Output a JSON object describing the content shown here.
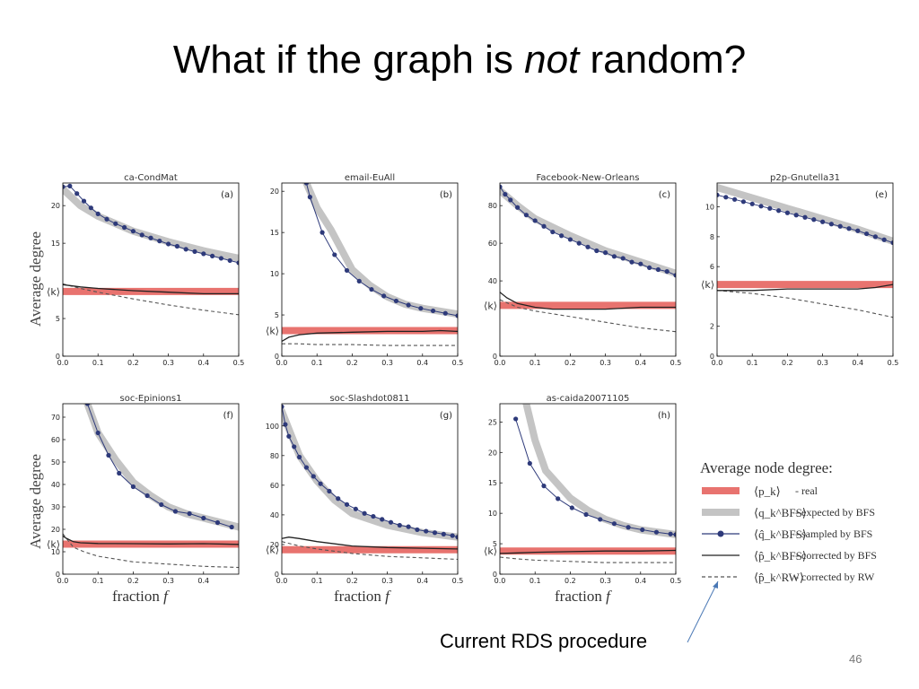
{
  "slide": {
    "title_pre": "What if the graph is ",
    "title_emph": "not",
    "title_post": " random?",
    "annotation": "Current RDS procedure",
    "page_number": "46"
  },
  "axis_text": {
    "ylabel_top": "Average degree",
    "ylabel_bottom": "Average degree",
    "xlabel_prefix": "fraction",
    "xlabel_var": "f",
    "k_label": "⟨k⟩"
  },
  "legend": {
    "title": "Average node degree:",
    "items": [
      {
        "symbol": "⟨p_k⟩",
        "text": "- real",
        "style": "real"
      },
      {
        "symbol": "⟨q_k^BFS⟩",
        "text": "- expected by BFS",
        "style": "expected"
      },
      {
        "symbol": "⟨q̂_k^BFS⟩",
        "text": "- sampled by BFS",
        "style": "sampled"
      },
      {
        "symbol": "⟨p̂_k^BFS⟩",
        "text": "- corrected by BFS",
        "style": "corrected_bfs"
      },
      {
        "symbol": "⟨p̂_k^RW⟩",
        "text": "- corrected by RW",
        "style": "corrected_rw"
      }
    ]
  },
  "colors": {
    "real": "#e8736f",
    "expected": "#c4c4c4",
    "sampled": "#2e3a7a",
    "corrected_bfs": "#222222",
    "corrected_rw": "#555555",
    "annotation_arrow": "#4a78b5"
  },
  "chart_data": [
    {
      "type": "line",
      "title": "ca-CondMat",
      "tag": "(a)",
      "xlim": [
        0,
        0.5
      ],
      "ylim": [
        0,
        23
      ],
      "xticks": [
        0.0,
        0.1,
        0.2,
        0.3,
        0.4,
        0.5
      ],
      "xtick_labels": [
        "0.0",
        "0.1",
        "0.2",
        "0.3",
        "0.4",
        "0.5"
      ],
      "yticks": [
        0,
        5,
        15,
        20
      ],
      "ytick_labels": [
        "0",
        "5",
        "15",
        "20"
      ],
      "real_k": 8.6,
      "expected": {
        "x": [
          0,
          0.05,
          0.1,
          0.2,
          0.3,
          0.4,
          0.5
        ],
        "y": [
          22.2,
          20.0,
          18.6,
          16.6,
          15.2,
          14.0,
          13.0
        ]
      },
      "sampled": {
        "x": [
          0,
          0.02,
          0.04,
          0.06,
          0.08,
          0.1,
          0.125,
          0.15,
          0.175,
          0.2,
          0.225,
          0.25,
          0.275,
          0.3,
          0.325,
          0.35,
          0.375,
          0.4,
          0.425,
          0.45,
          0.475,
          0.5
        ],
        "y": [
          22.5,
          22.6,
          21.6,
          20.6,
          19.7,
          18.9,
          18.2,
          17.6,
          17.1,
          16.6,
          16.1,
          15.7,
          15.3,
          14.9,
          14.6,
          14.2,
          13.9,
          13.6,
          13.3,
          13.0,
          12.7,
          12.4
        ]
      },
      "corrected_bfs": {
        "x": [
          0,
          0.05,
          0.1,
          0.2,
          0.3,
          0.4,
          0.5
        ],
        "y": [
          9.5,
          9.2,
          9.0,
          8.7,
          8.5,
          8.3,
          8.3
        ]
      },
      "corrected_rw": {
        "x": [
          0,
          0.05,
          0.1,
          0.2,
          0.3,
          0.4,
          0.5
        ],
        "y": [
          9.6,
          9.0,
          8.5,
          7.6,
          6.8,
          6.1,
          5.5
        ]
      }
    },
    {
      "type": "line",
      "title": "email-EuAll",
      "tag": "(b)",
      "xlim": [
        0,
        0.5
      ],
      "ylim": [
        0,
        21
      ],
      "xticks": [
        0.0,
        0.1,
        0.2,
        0.3,
        0.4,
        0.5
      ],
      "xtick_labels": [
        "0.0",
        "0.1",
        "0.2",
        "0.3",
        "0.4",
        "0.5"
      ],
      "yticks": [
        0,
        5,
        10,
        15,
        20
      ],
      "ytick_labels": [
        "0",
        "5",
        "10",
        "15",
        "20"
      ],
      "real_k": 3.1,
      "expected": {
        "x": [
          0.07,
          0.1,
          0.14,
          0.2,
          0.25,
          0.3,
          0.35,
          0.4,
          0.5
        ],
        "y": [
          21.0,
          18.0,
          15.3,
          10.5,
          8.6,
          7.2,
          6.3,
          5.8,
          5.1
        ]
      },
      "sampled": {
        "x": [
          0.07,
          0.08,
          0.115,
          0.15,
          0.185,
          0.22,
          0.255,
          0.29,
          0.325,
          0.36,
          0.395,
          0.43,
          0.465,
          0.5
        ],
        "y": [
          21.0,
          19.3,
          15.0,
          12.3,
          10.4,
          9.1,
          8.1,
          7.3,
          6.7,
          6.2,
          5.8,
          5.5,
          5.2,
          4.9
        ]
      },
      "corrected_bfs": {
        "x": [
          0,
          0.02,
          0.05,
          0.1,
          0.2,
          0.3,
          0.4,
          0.45,
          0.5
        ],
        "y": [
          1.8,
          2.3,
          2.6,
          2.8,
          2.9,
          3.0,
          3.0,
          3.1,
          3.0
        ]
      },
      "corrected_rw": {
        "x": [
          0,
          0.05,
          0.1,
          0.2,
          0.3,
          0.4,
          0.5
        ],
        "y": [
          1.5,
          1.5,
          1.4,
          1.4,
          1.3,
          1.3,
          1.3
        ]
      }
    },
    {
      "type": "line",
      "title": "Facebook-New-Orleans",
      "tag": "(c)",
      "xlim": [
        0,
        0.5
      ],
      "ylim": [
        0,
        92
      ],
      "xticks": [
        0.0,
        0.1,
        0.2,
        0.3,
        0.4,
        0.5
      ],
      "xtick_labels": [
        "0.0",
        "0.1",
        "0.2",
        "0.3",
        "0.4",
        "0.5"
      ],
      "yticks": [
        0,
        40,
        60,
        80
      ],
      "ytick_labels": [
        "0",
        "40",
        "60",
        "80"
      ],
      "real_k": 27,
      "expected": {
        "x": [
          0,
          0.05,
          0.1,
          0.2,
          0.3,
          0.4,
          0.5
        ],
        "y": [
          88,
          80,
          73,
          64,
          56,
          50,
          44
        ]
      },
      "sampled": {
        "x": [
          0,
          0.015,
          0.03,
          0.05,
          0.075,
          0.1,
          0.125,
          0.15,
          0.175,
          0.2,
          0.225,
          0.25,
          0.275,
          0.3,
          0.325,
          0.35,
          0.375,
          0.4,
          0.425,
          0.45,
          0.475,
          0.5
        ],
        "y": [
          90,
          86,
          83,
          79,
          75,
          72,
          69,
          66,
          64,
          62,
          60,
          58,
          56,
          55,
          53,
          52,
          50,
          49,
          47,
          46,
          45,
          43
        ]
      },
      "corrected_bfs": {
        "x": [
          0,
          0.02,
          0.05,
          0.1,
          0.15,
          0.2,
          0.3,
          0.4,
          0.5
        ],
        "y": [
          34,
          31,
          28,
          26,
          25,
          25,
          25,
          26,
          26
        ]
      },
      "corrected_rw": {
        "x": [
          0,
          0.05,
          0.1,
          0.2,
          0.3,
          0.4,
          0.5
        ],
        "y": [
          30,
          26,
          24,
          21,
          18,
          15,
          13
        ]
      }
    },
    {
      "type": "line",
      "title": "p2p-Gnutella31",
      "tag": "(e)",
      "xlim": [
        0,
        0.5
      ],
      "ylim": [
        0,
        11.6
      ],
      "xticks": [
        0.0,
        0.1,
        0.2,
        0.3,
        0.4,
        0.5
      ],
      "xtick_labels": [
        "0.0",
        "0.1",
        "0.2",
        "0.3",
        "0.4",
        "0.5"
      ],
      "yticks": [
        0,
        2,
        6,
        8,
        10
      ],
      "ytick_labels": [
        "0",
        "2",
        "6",
        "8",
        "10"
      ],
      "real_k": 4.8,
      "expected": {
        "x": [
          0,
          0.1,
          0.2,
          0.3,
          0.4,
          0.5
        ],
        "y": [
          11.3,
          10.6,
          9.9,
          9.2,
          8.5,
          7.7
        ]
      },
      "sampled": {
        "x": [
          0,
          0.025,
          0.05,
          0.075,
          0.1,
          0.125,
          0.15,
          0.175,
          0.2,
          0.225,
          0.25,
          0.275,
          0.3,
          0.325,
          0.35,
          0.375,
          0.4,
          0.425,
          0.45,
          0.475,
          0.5
        ],
        "y": [
          10.8,
          10.65,
          10.5,
          10.35,
          10.2,
          10.05,
          9.9,
          9.75,
          9.6,
          9.45,
          9.3,
          9.15,
          9.0,
          8.85,
          8.7,
          8.55,
          8.4,
          8.2,
          8.0,
          7.8,
          7.6
        ]
      },
      "corrected_bfs": {
        "x": [
          0,
          0.1,
          0.2,
          0.3,
          0.4,
          0.45,
          0.5
        ],
        "y": [
          4.4,
          4.4,
          4.5,
          4.5,
          4.5,
          4.6,
          4.8
        ]
      },
      "corrected_rw": {
        "x": [
          0,
          0.1,
          0.2,
          0.3,
          0.4,
          0.5
        ],
        "y": [
          4.4,
          4.2,
          3.9,
          3.5,
          3.1,
          2.6
        ]
      }
    },
    {
      "type": "line",
      "title": "soc-Epinions1",
      "tag": "(f)",
      "xlim": [
        0,
        0.5
      ],
      "ylim": [
        0,
        76
      ],
      "xticks": [
        0.0,
        0.1,
        0.2,
        0.3,
        0.4
      ],
      "xtick_labels": [
        "0.0",
        "0.1",
        "0.2",
        "0.3",
        "0.4"
      ],
      "yticks": [
        0,
        10,
        20,
        30,
        40,
        50,
        60,
        70
      ],
      "ytick_labels": [
        "0",
        "10",
        "20",
        "30",
        "40",
        "50",
        "60",
        "70"
      ],
      "real_k": 13.4,
      "expected": {
        "x": [
          0.07,
          0.1,
          0.15,
          0.2,
          0.25,
          0.3,
          0.35,
          0.4,
          0.45,
          0.5
        ],
        "y": [
          76,
          63,
          51,
          41,
          35,
          30,
          27,
          25,
          23,
          21
        ]
      },
      "sampled": {
        "x": [
          0.07,
          0.1,
          0.13,
          0.16,
          0.2,
          0.24,
          0.28,
          0.32,
          0.36,
          0.4,
          0.44,
          0.48
        ],
        "y": [
          76,
          63,
          53,
          45,
          39,
          35,
          31,
          28,
          27,
          25,
          23,
          21
        ]
      },
      "corrected_bfs": {
        "x": [
          0,
          0.01,
          0.03,
          0.05,
          0.1,
          0.2,
          0.3,
          0.4,
          0.5
        ],
        "y": [
          17,
          16,
          14.5,
          14,
          13.7,
          13.6,
          13.5,
          13.6,
          13.3
        ]
      },
      "corrected_rw": {
        "x": [
          0,
          0.03,
          0.06,
          0.1,
          0.2,
          0.3,
          0.4,
          0.5
        ],
        "y": [
          18,
          12,
          10,
          8,
          5.5,
          4.5,
          3.5,
          3
        ]
      }
    },
    {
      "type": "line",
      "title": "soc-Slashdot0811",
      "tag": "(g)",
      "xlim": [
        0,
        0.5
      ],
      "ylim": [
        0,
        115
      ],
      "xticks": [
        0.0,
        0.1,
        0.2,
        0.3,
        0.4,
        0.5
      ],
      "xtick_labels": [
        "0.0",
        "0.1",
        "0.2",
        "0.3",
        "0.4",
        "0.5"
      ],
      "yticks": [
        0,
        20,
        40,
        60,
        80,
        100
      ],
      "ytick_labels": [
        "0",
        "20",
        "40",
        "60",
        "80",
        "100"
      ],
      "real_k": 16.5,
      "expected": {
        "x": [
          0,
          0.05,
          0.1,
          0.15,
          0.2,
          0.3,
          0.4,
          0.5
        ],
        "y": [
          110,
          80,
          63,
          50,
          41,
          33,
          28,
          25
        ]
      },
      "sampled": {
        "x": [
          0,
          0.01,
          0.02,
          0.035,
          0.05,
          0.07,
          0.09,
          0.11,
          0.135,
          0.16,
          0.185,
          0.21,
          0.235,
          0.26,
          0.285,
          0.31,
          0.335,
          0.36,
          0.385,
          0.41,
          0.435,
          0.46,
          0.485,
          0.5
        ],
        "y": [
          113,
          101,
          93,
          86,
          79,
          72,
          66,
          61,
          56,
          51,
          47,
          44,
          41,
          39,
          37,
          35,
          33,
          32,
          30,
          29,
          28,
          27,
          26,
          25
        ]
      },
      "corrected_bfs": {
        "x": [
          0,
          0.02,
          0.05,
          0.1,
          0.2,
          0.3,
          0.4,
          0.5
        ],
        "y": [
          24,
          25,
          24,
          22,
          19,
          18,
          17.5,
          17
        ]
      },
      "corrected_rw": {
        "x": [
          0,
          0.05,
          0.1,
          0.2,
          0.3,
          0.4,
          0.5
        ],
        "y": [
          22,
          19,
          17,
          14,
          12,
          11,
          10
        ]
      }
    },
    {
      "type": "line",
      "title": "as-caida20071105",
      "tag": "(h)",
      "xlim": [
        0,
        0.5
      ],
      "ylim": [
        0,
        28
      ],
      "xticks": [
        0.0,
        0.1,
        0.2,
        0.3,
        0.4,
        0.5
      ],
      "xtick_labels": [
        "0.0",
        "0.1",
        "0.2",
        "0.3",
        "0.4",
        "0.5"
      ],
      "yticks": [
        0,
        5,
        10,
        15,
        20,
        25
      ],
      "ytick_labels": [
        "0",
        "5",
        "10",
        "15",
        "20",
        "25"
      ],
      "real_k": 3.8,
      "expected": {
        "x": [
          0.075,
          0.1,
          0.13,
          0.2,
          0.25,
          0.3,
          0.35,
          0.4,
          0.5
        ],
        "y": [
          28,
          22,
          17,
          12.5,
          10.5,
          9.0,
          8.0,
          7.3,
          6.5
        ]
      },
      "sampled": {
        "x": [
          0.045,
          0.085,
          0.125,
          0.165,
          0.205,
          0.245,
          0.285,
          0.325,
          0.365,
          0.405,
          0.445,
          0.485,
          0.5
        ],
        "y": [
          25.5,
          18.2,
          14.5,
          12.4,
          10.9,
          9.8,
          9.0,
          8.3,
          7.7,
          7.3,
          6.9,
          6.6,
          6.5
        ]
      },
      "corrected_bfs": {
        "x": [
          0,
          0.05,
          0.1,
          0.2,
          0.3,
          0.4,
          0.5
        ],
        "y": [
          3.4,
          3.5,
          3.6,
          3.7,
          3.8,
          3.8,
          3.9
        ]
      },
      "corrected_rw": {
        "x": [
          0,
          0.05,
          0.1,
          0.2,
          0.3,
          0.4,
          0.5
        ],
        "y": [
          2.8,
          2.5,
          2.3,
          2.1,
          1.9,
          1.9,
          1.9
        ]
      }
    }
  ]
}
